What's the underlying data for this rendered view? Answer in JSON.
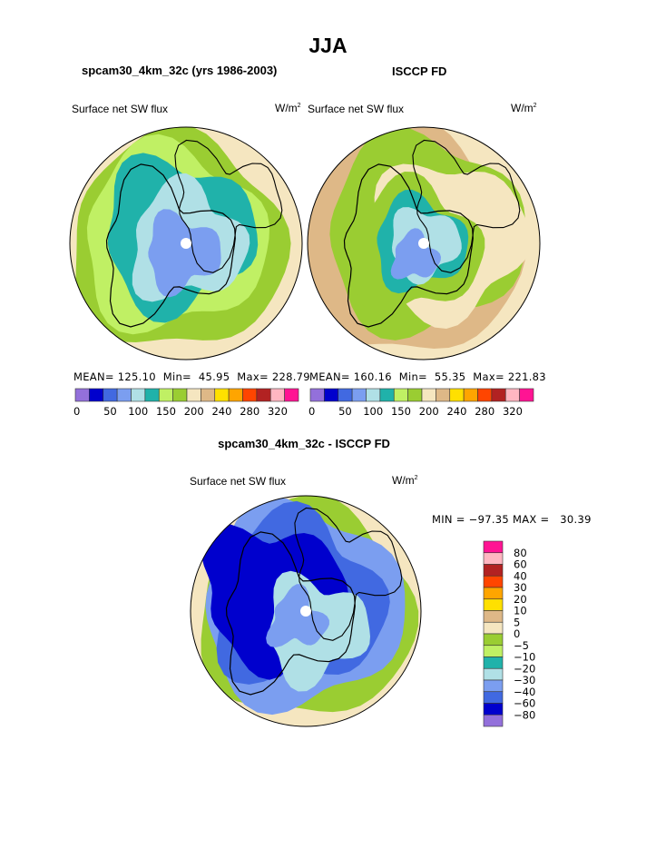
{
  "title": "JJA",
  "colors": [
    "#9370DB",
    "#0000CD",
    "#4169E1",
    "#7B9EF0",
    "#B0E0E6",
    "#20B2AA",
    "#C0F064",
    "#9ACD32",
    "#F5E6C0",
    "#DEB887",
    "#FFE000",
    "#FFA500",
    "#FF4500",
    "#B22222",
    "#FFB6C1",
    "#FF1493"
  ],
  "chart_data": [
    {
      "type": "heatmap",
      "projection": "north-polar-stereographic",
      "title": "spcam30_4km_32c (yrs 1986-2003)",
      "left_label": "Surface net SW flux",
      "units": "W/m",
      "units_sup": "2",
      "stats": {
        "mean_label": "MEAN=",
        "mean": "125.10",
        "min_label": "Min=",
        "min": "45.95",
        "max_label": "Max=",
        "max": "228.79"
      },
      "colorbar_ticks": [
        "0",
        "50",
        "100",
        "150",
        "200",
        "240",
        "280",
        "320"
      ]
    },
    {
      "type": "heatmap",
      "projection": "north-polar-stereographic",
      "title": "ISCCP FD",
      "left_label": "Surface net SW flux",
      "units": "W/m",
      "units_sup": "2",
      "stats": {
        "mean_label": "MEAN=",
        "mean": "160.16",
        "min_label": "Min=",
        "min": "55.35",
        "max_label": "Max=",
        "max": "221.83"
      },
      "colorbar_ticks": [
        "0",
        "50",
        "100",
        "150",
        "200",
        "240",
        "280",
        "320"
      ]
    },
    {
      "type": "heatmap",
      "projection": "north-polar-stereographic",
      "title": "spcam30_4km_32c - ISCCP FD",
      "left_label": "Surface net SW flux",
      "units": "W/m",
      "units_sup": "2",
      "stats_text": "MIN = −97.35 MAX =   30.39",
      "colorbar_ticks": [
        "80",
        "60",
        "40",
        "30",
        "20",
        "10",
        "5",
        "0",
        "−5",
        "−10",
        "−20",
        "−30",
        "−40",
        "−60",
        "−80"
      ]
    }
  ]
}
